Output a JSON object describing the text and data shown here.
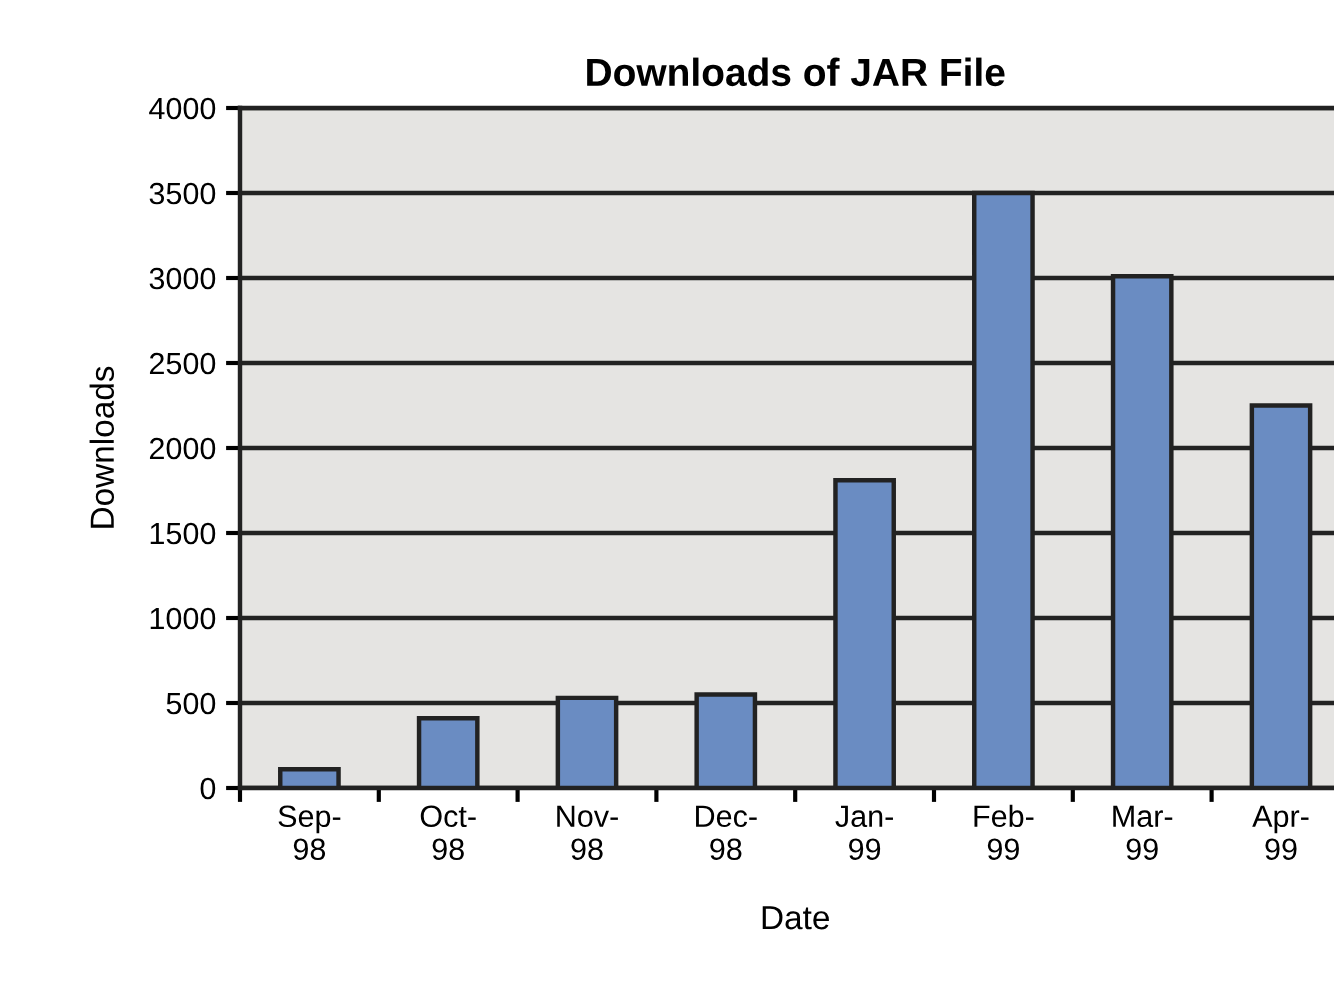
{
  "chart_data": {
    "type": "bar",
    "title": "Downloads of JAR File",
    "xlabel": "Date",
    "ylabel": "Downloads",
    "categories": [
      "Sep-98",
      "Oct-98",
      "Nov-98",
      "Dec-98",
      "Jan-99",
      "Feb-99",
      "Mar-99",
      "Apr-99"
    ],
    "values": [
      110,
      410,
      530,
      550,
      1810,
      3500,
      3010,
      2250
    ],
    "color": "#6a8cc2",
    "ylim": [
      0,
      4000
    ],
    "yticks": [
      0,
      500,
      1000,
      1500,
      2000,
      2500,
      3000,
      3500,
      4000
    ],
    "grid": "y",
    "legend": false
  }
}
